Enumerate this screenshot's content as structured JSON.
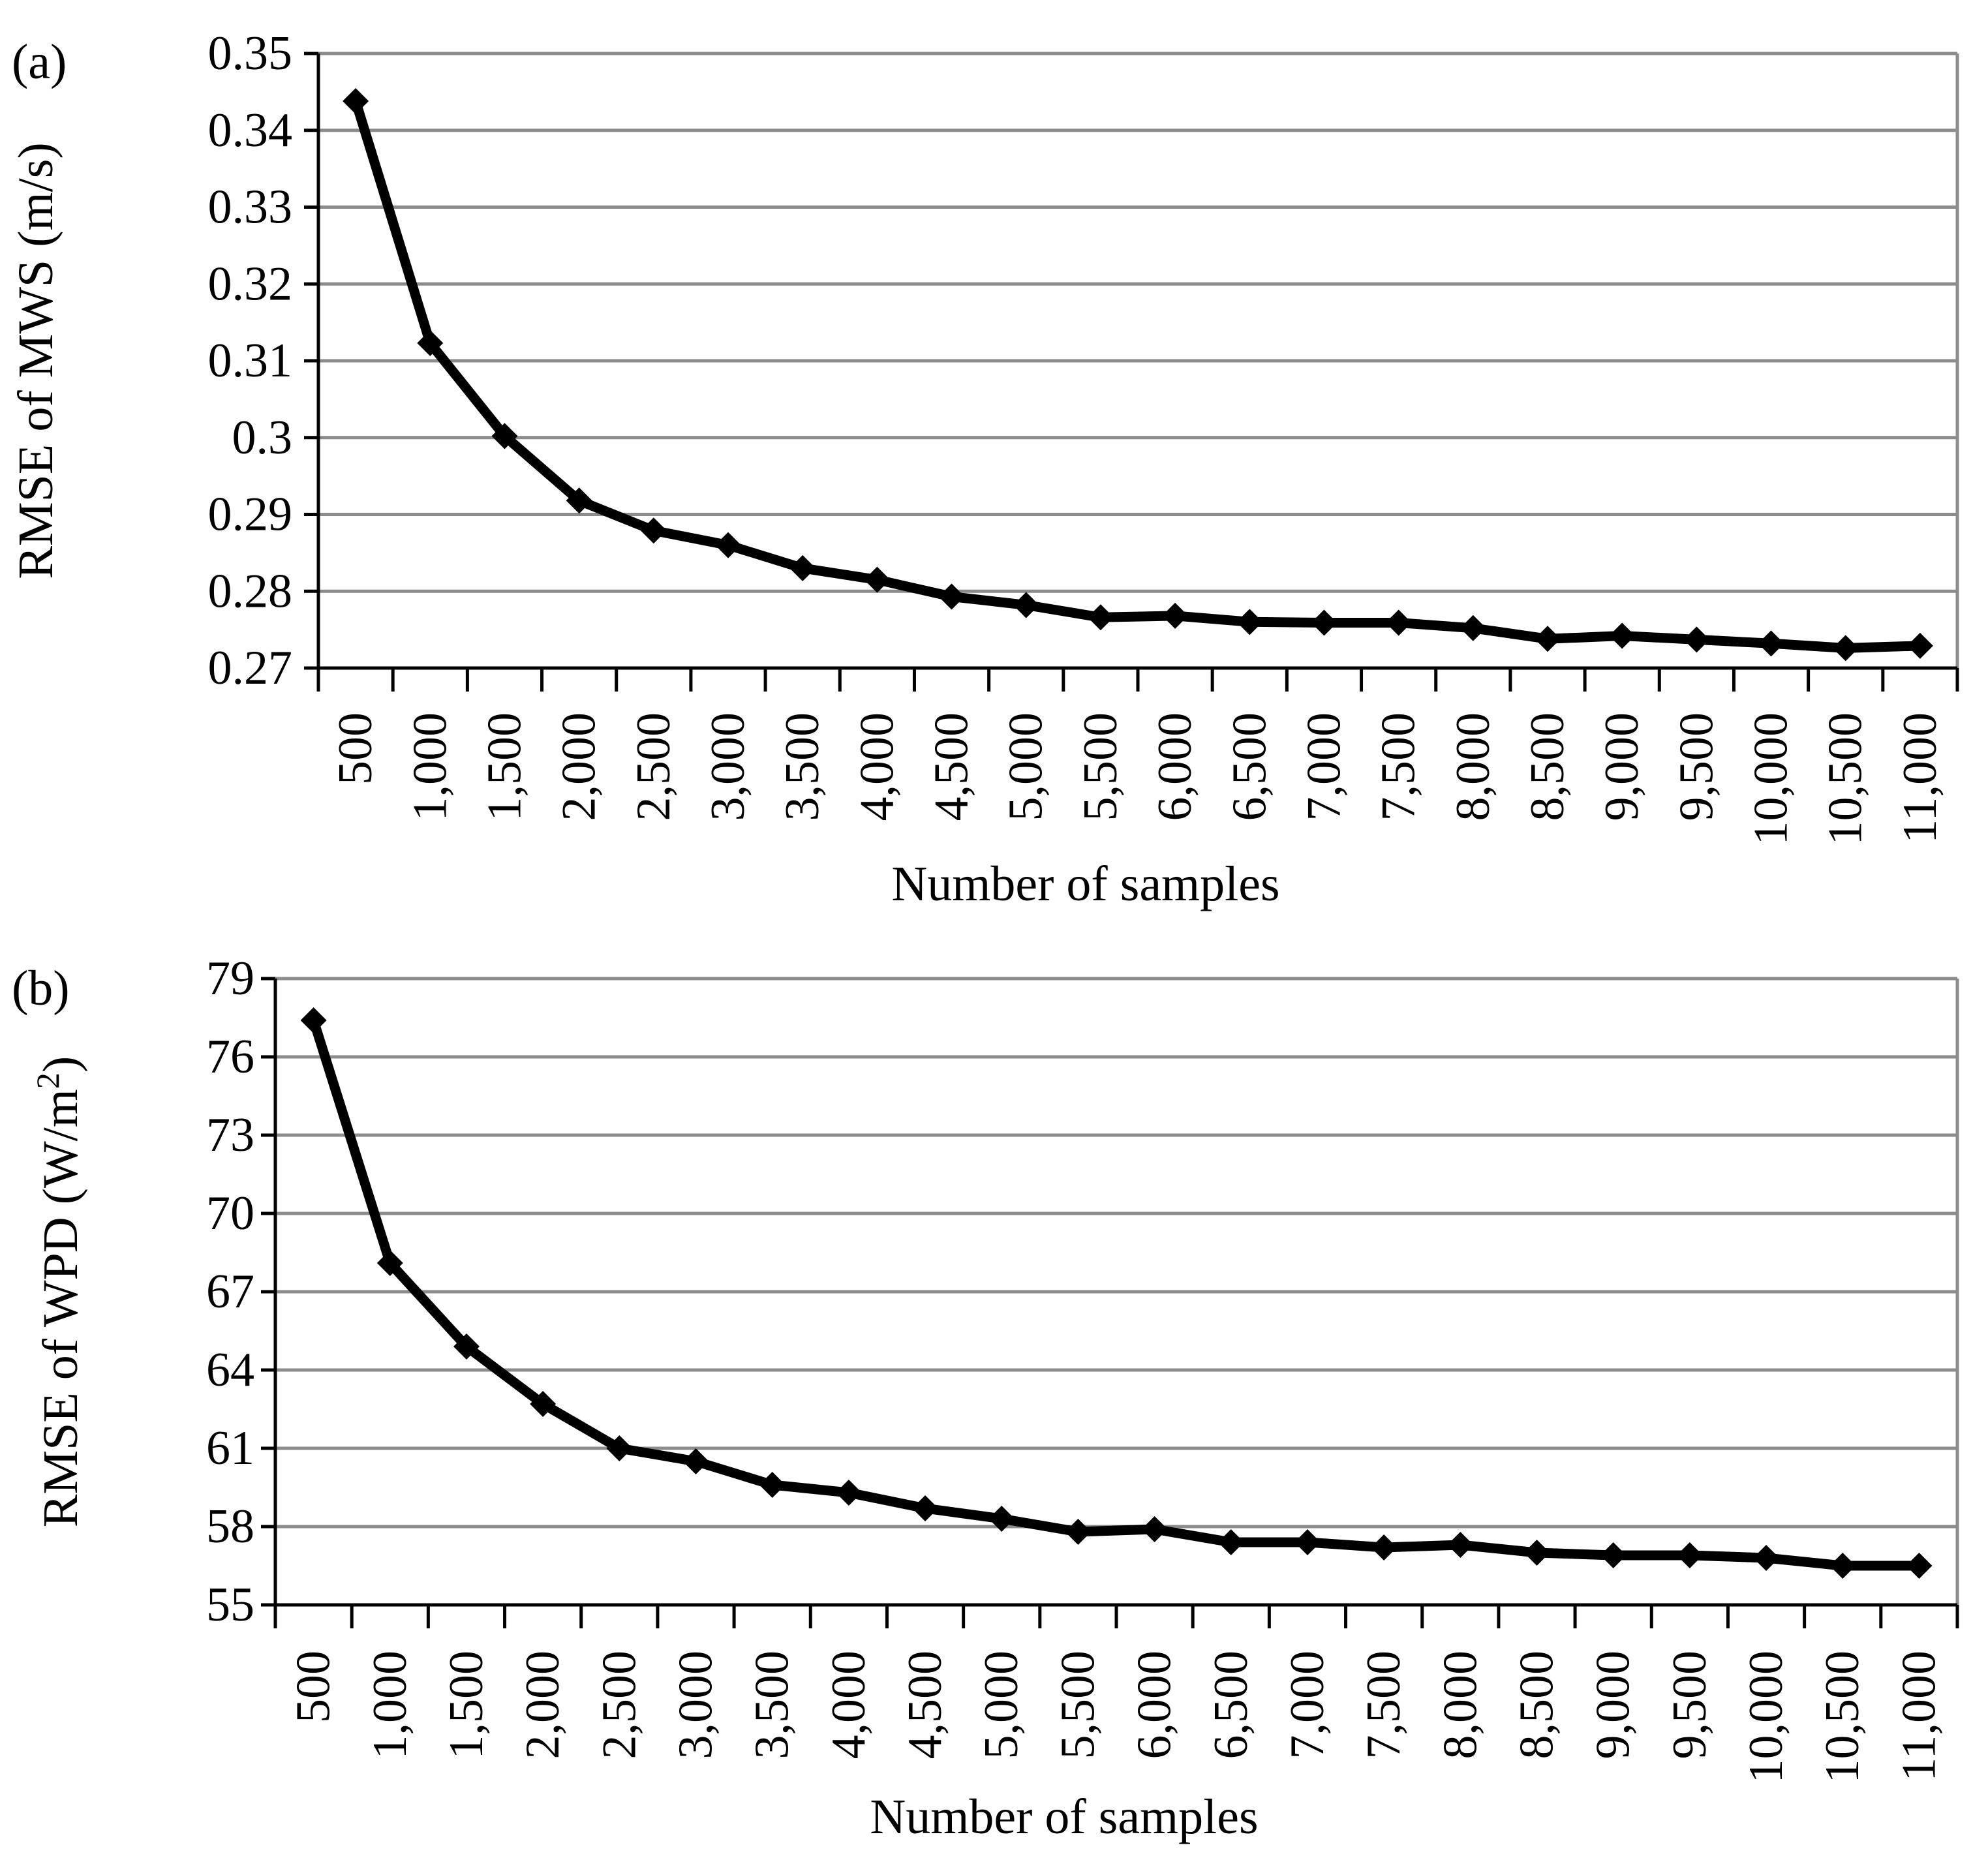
{
  "chart_data": [
    {
      "panel_label": "(a)",
      "type": "line",
      "title": "",
      "xlabel": "Number of samples",
      "ylabel": "RMSE of MWS (m/s)",
      "ylabel_parts": {
        "main": "RMSE of MWS (m/s)",
        "sup": ""
      },
      "categories": [
        "500",
        "1,000",
        "1,500",
        "2,000",
        "2,500",
        "3,000",
        "3,500",
        "4,000",
        "4,500",
        "5,000",
        "5,500",
        "6,000",
        "6,500",
        "7,000",
        "7,500",
        "8,000",
        "8,500",
        "9,000",
        "9,500",
        "10,000",
        "10,500",
        "11,000"
      ],
      "values": [
        0.3438,
        0.3123,
        0.3002,
        0.2918,
        0.2879,
        0.286,
        0.283,
        0.2815,
        0.2793,
        0.2782,
        0.2766,
        0.2768,
        0.276,
        0.2759,
        0.2759,
        0.2752,
        0.2738,
        0.2742,
        0.2737,
        0.2732,
        0.2726,
        0.2729
      ],
      "yticks": [
        "0.27",
        "0.28",
        "0.29",
        "0.3",
        "0.31",
        "0.32",
        "0.33",
        "0.34",
        "0.35"
      ],
      "ylim": [
        0.27,
        0.35
      ],
      "grid": true,
      "marker": "diamond"
    },
    {
      "panel_label": "(b)",
      "type": "line",
      "title": "",
      "xlabel": "Number of samples",
      "ylabel": "RMSE of WPD (W/m²)",
      "ylabel_parts": {
        "main": "RMSE of WPD (W/m",
        "sup": "2",
        "tail": ")"
      },
      "categories": [
        "500",
        "1,000",
        "1,500",
        "2,000",
        "2,500",
        "3,000",
        "3,500",
        "4,000",
        "4,500",
        "5,000",
        "5,500",
        "6,000",
        "6,500",
        "7,000",
        "7,500",
        "8,000",
        "8,500",
        "9,000",
        "9,500",
        "10,000",
        "10,500",
        "11,000"
      ],
      "values": [
        77.4,
        68.1,
        64.9,
        62.7,
        61.0,
        60.5,
        59.6,
        59.3,
        58.7,
        58.3,
        57.8,
        57.9,
        57.4,
        57.4,
        57.2,
        57.3,
        57.0,
        56.9,
        56.9,
        56.8,
        56.5,
        56.5
      ],
      "yticks": [
        "55",
        "58",
        "61",
        "64",
        "67",
        "70",
        "73",
        "76",
        "79"
      ],
      "ylim": [
        55,
        79
      ],
      "grid": true,
      "marker": "diamond"
    }
  ]
}
